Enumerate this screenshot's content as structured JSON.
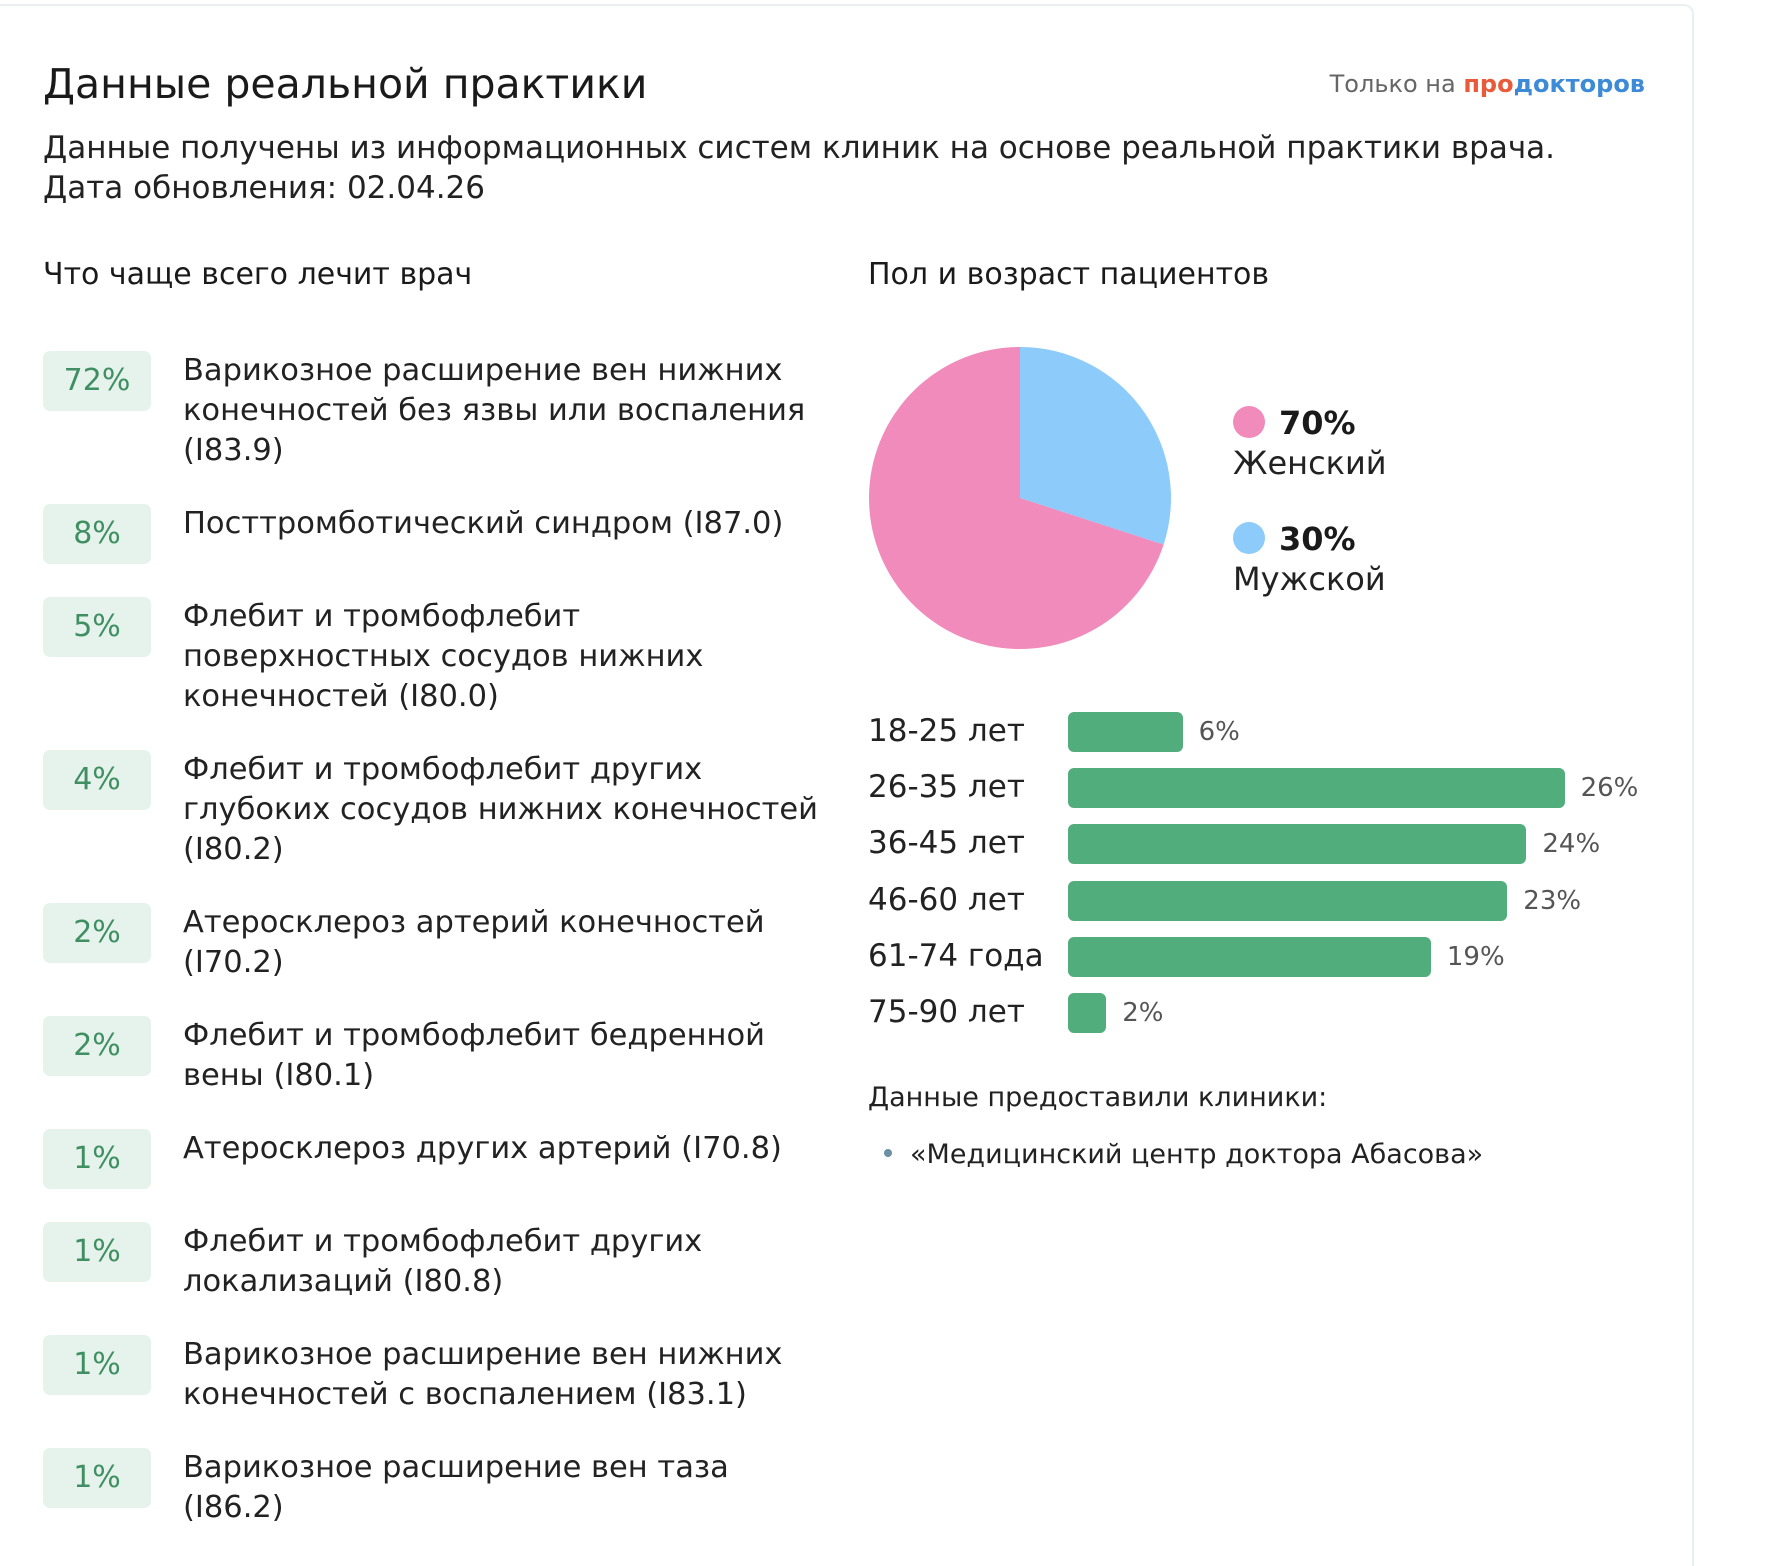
{
  "header": {
    "title": "Данные реальной практики",
    "brand_prefix": "Только на",
    "brand_pro": "про",
    "brand_doc": "докторов"
  },
  "subtitle": {
    "line1": "Данные получены из информационных систем клиник на основе реальной практики врача.",
    "line2": "Дата обновления: 02.04.26"
  },
  "diagnoses_section": {
    "title": "Что чаще всего лечит врач",
    "items": [
      {
        "pct": "72%",
        "lines": [
          "Варикозное расширение вен нижних",
          "конечностей без язвы или воспаления",
          "(I83.9)"
        ]
      },
      {
        "pct": "8%",
        "lines": [
          "Посттромботический синдром (I87.0)"
        ]
      },
      {
        "pct": "5%",
        "lines": [
          "Флебит и тромбофлебит",
          "поверхностных сосудов нижних",
          "конечностей (I80.0)"
        ]
      },
      {
        "pct": "4%",
        "lines": [
          "Флебит и тромбофлебит других",
          "глубоких сосудов нижних конечностей",
          "(I80.2)"
        ]
      },
      {
        "pct": "2%",
        "lines": [
          "Атеросклероз артерий конечностей",
          "(I70.2)"
        ]
      },
      {
        "pct": "2%",
        "lines": [
          "Флебит и тромбофлебит бедренной",
          "вены (I80.1)"
        ]
      },
      {
        "pct": "1%",
        "lines": [
          "Атеросклероз других артерий (I70.8)"
        ]
      },
      {
        "pct": "1%",
        "lines": [
          "Флебит и тромбофлебит других",
          "локализаций (I80.8)"
        ]
      },
      {
        "pct": "1%",
        "lines": [
          "Варикозное расширение вен нижних",
          "конечностей с воспалением (I83.1)"
        ]
      },
      {
        "pct": "1%",
        "lines": [
          "Варикозное расширение вен таза",
          "(I86.2)"
        ]
      }
    ]
  },
  "patients_section": {
    "title": "Пол и возраст пациентов",
    "gender": [
      {
        "pct_label": "70%",
        "label": "Женский",
        "value": 70,
        "color": "#f08bbb"
      },
      {
        "pct_label": "30%",
        "label": "Мужской",
        "value": 30,
        "color": "#8ccbfa"
      }
    ],
    "age_groups": [
      {
        "label": "18-25 лет",
        "pct_label": "6%",
        "value": 6
      },
      {
        "label": "26-35 лет",
        "pct_label": "26%",
        "value": 26
      },
      {
        "label": "36-45 лет",
        "pct_label": "24%",
        "value": 24
      },
      {
        "label": "46-60 лет",
        "pct_label": "23%",
        "value": 23
      },
      {
        "label": "61-74 года",
        "pct_label": "19%",
        "value": 19
      },
      {
        "label": "75-90 лет",
        "pct_label": "2%",
        "value": 2
      }
    ],
    "bar_color": "#52ad7d"
  },
  "clinics": {
    "title": "Данные предоставили клиники:",
    "items": [
      "«Медицинский центр доктора Абасова»"
    ]
  }
}
